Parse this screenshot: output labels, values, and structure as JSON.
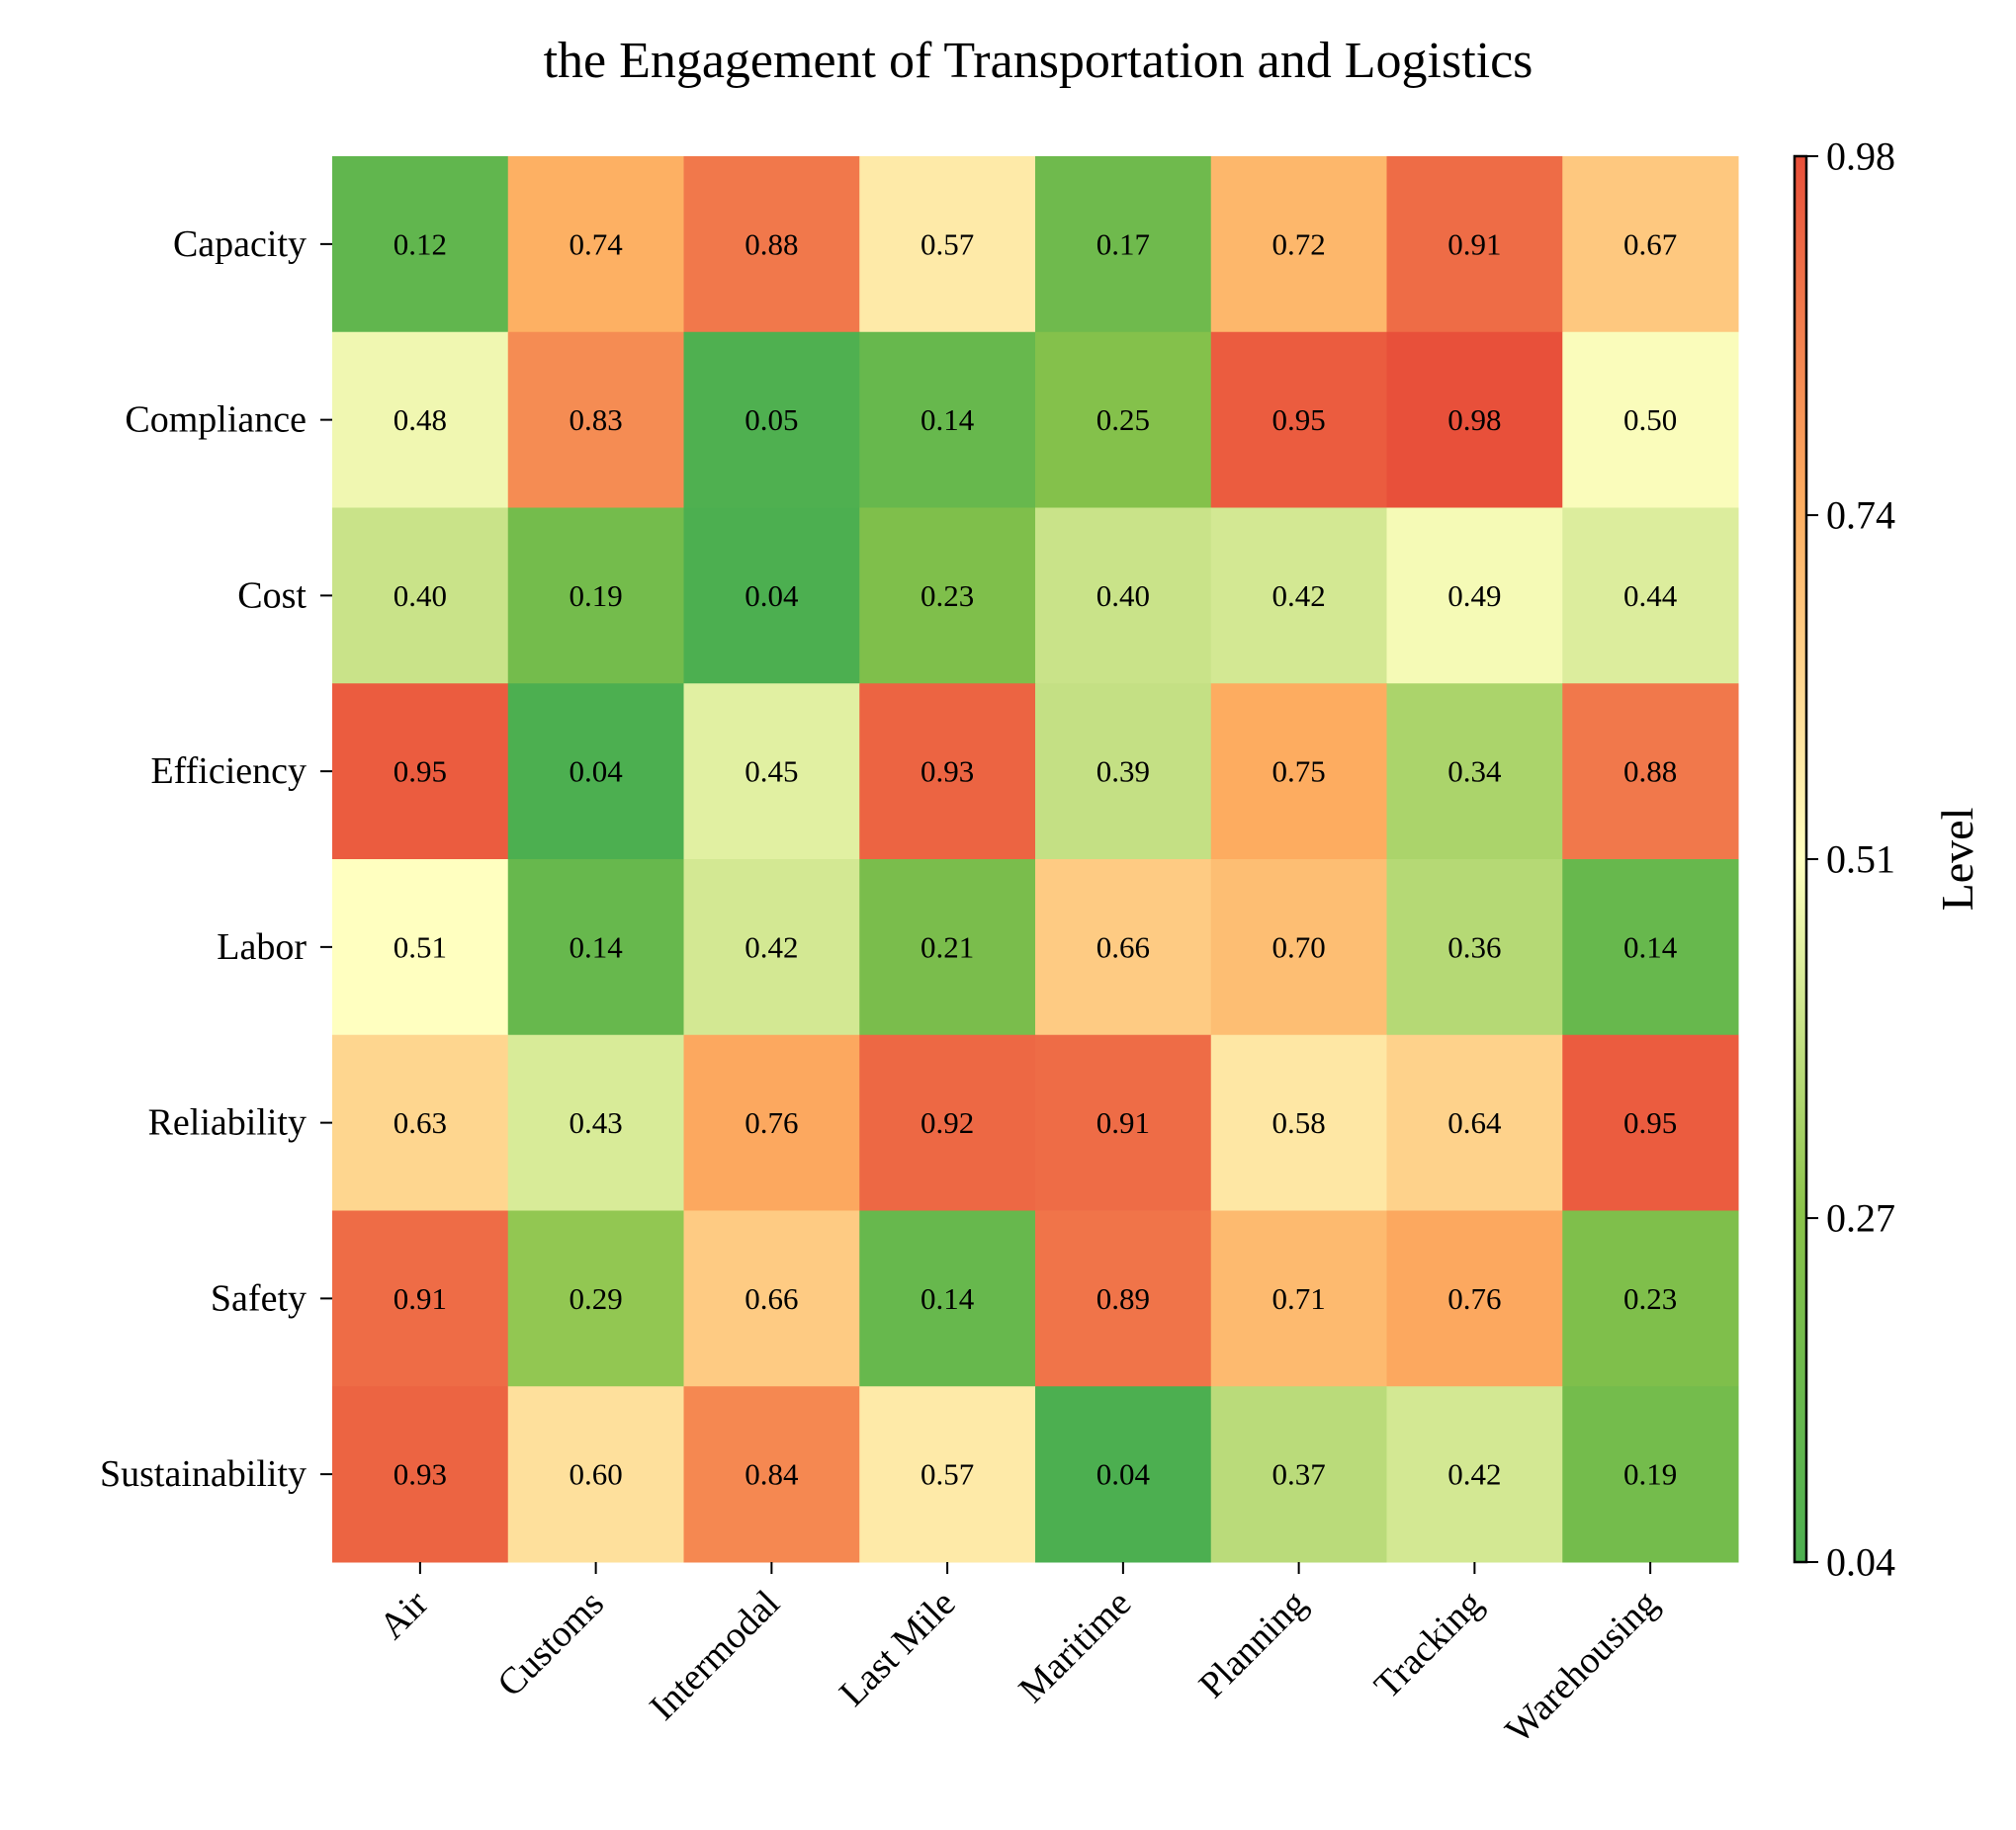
{
  "chart_data": {
    "type": "heatmap",
    "title": "the Engagement of Transportation and Logistics",
    "x_categories": [
      "Air",
      "Customs",
      "Intermodal",
      "Last Mile",
      "Maritime",
      "Planning",
      "Tracking",
      "Warehousing"
    ],
    "y_categories": [
      "Capacity",
      "Compliance",
      "Cost",
      "Efficiency",
      "Labor",
      "Reliability",
      "Safety",
      "Sustainability"
    ],
    "values": [
      [
        0.12,
        0.74,
        0.88,
        0.57,
        0.17,
        0.72,
        0.91,
        0.67
      ],
      [
        0.48,
        0.83,
        0.05,
        0.14,
        0.25,
        0.95,
        0.98,
        0.5
      ],
      [
        0.4,
        0.19,
        0.04,
        0.23,
        0.4,
        0.42,
        0.49,
        0.44
      ],
      [
        0.95,
        0.04,
        0.45,
        0.93,
        0.39,
        0.75,
        0.34,
        0.88
      ],
      [
        0.51,
        0.14,
        0.42,
        0.21,
        0.66,
        0.7,
        0.36,
        0.14
      ],
      [
        0.63,
        0.43,
        0.76,
        0.92,
        0.91,
        0.58,
        0.64,
        0.95
      ],
      [
        0.91,
        0.29,
        0.66,
        0.14,
        0.89,
        0.71,
        0.76,
        0.23
      ],
      [
        0.93,
        0.6,
        0.84,
        0.57,
        0.04,
        0.37,
        0.42,
        0.19
      ]
    ],
    "value_format": "0.00",
    "colorbar": {
      "label": "Level",
      "range": [
        0.04,
        0.98
      ],
      "ticks": [
        "0.04",
        "0.27",
        "0.51",
        "0.74",
        "0.98"
      ]
    },
    "colormap": [
      "#4caf50",
      "#8bc34a",
      "#ffffc0",
      "#fdae61",
      "#e8503a"
    ],
    "grid": false
  }
}
